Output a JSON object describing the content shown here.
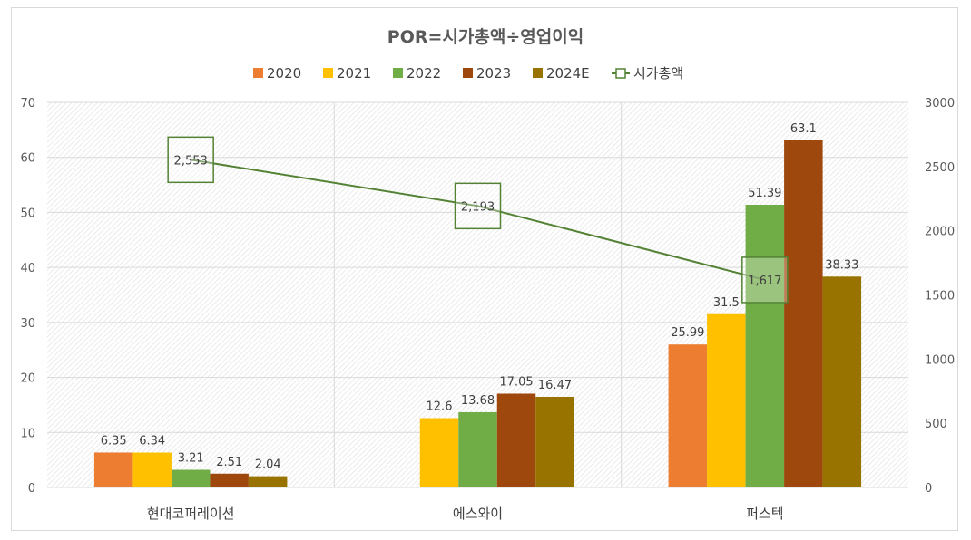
{
  "chart_data": {
    "type": "bar",
    "title": "POR=시가총액÷영업이익",
    "categories": [
      "현대코퍼레이션",
      "에스와이",
      "퍼스텍"
    ],
    "series": [
      {
        "name": "2020",
        "color": "#ED7D31",
        "values": [
          6.35,
          null,
          25.99
        ]
      },
      {
        "name": "2021",
        "color": "#FFC000",
        "values": [
          6.34,
          12.6,
          31.5
        ]
      },
      {
        "name": "2022",
        "color": "#70AD47",
        "values": [
          3.21,
          13.68,
          51.39
        ]
      },
      {
        "name": "2023",
        "color": "#9E480E",
        "values": [
          2.51,
          17.05,
          63.1
        ]
      },
      {
        "name": "2024E",
        "color": "#997300",
        "values": [
          2.04,
          16.47,
          38.33
        ]
      }
    ],
    "line_series": {
      "name": "시가총액",
      "color": "#548235",
      "axis": "secondary",
      "values": [
        2553,
        2193,
        1617
      ],
      "labels": [
        "2,553",
        "2,193",
        "1,617"
      ]
    },
    "y_primary": {
      "min": 0,
      "max": 70,
      "ticks": [
        0,
        10,
        20,
        30,
        40,
        50,
        60,
        70
      ]
    },
    "y_secondary": {
      "min": 0,
      "max": 3000,
      "ticks": [
        0,
        500,
        1000,
        1500,
        2000,
        2500,
        3000
      ]
    },
    "legend_position": "top",
    "grid": true
  }
}
